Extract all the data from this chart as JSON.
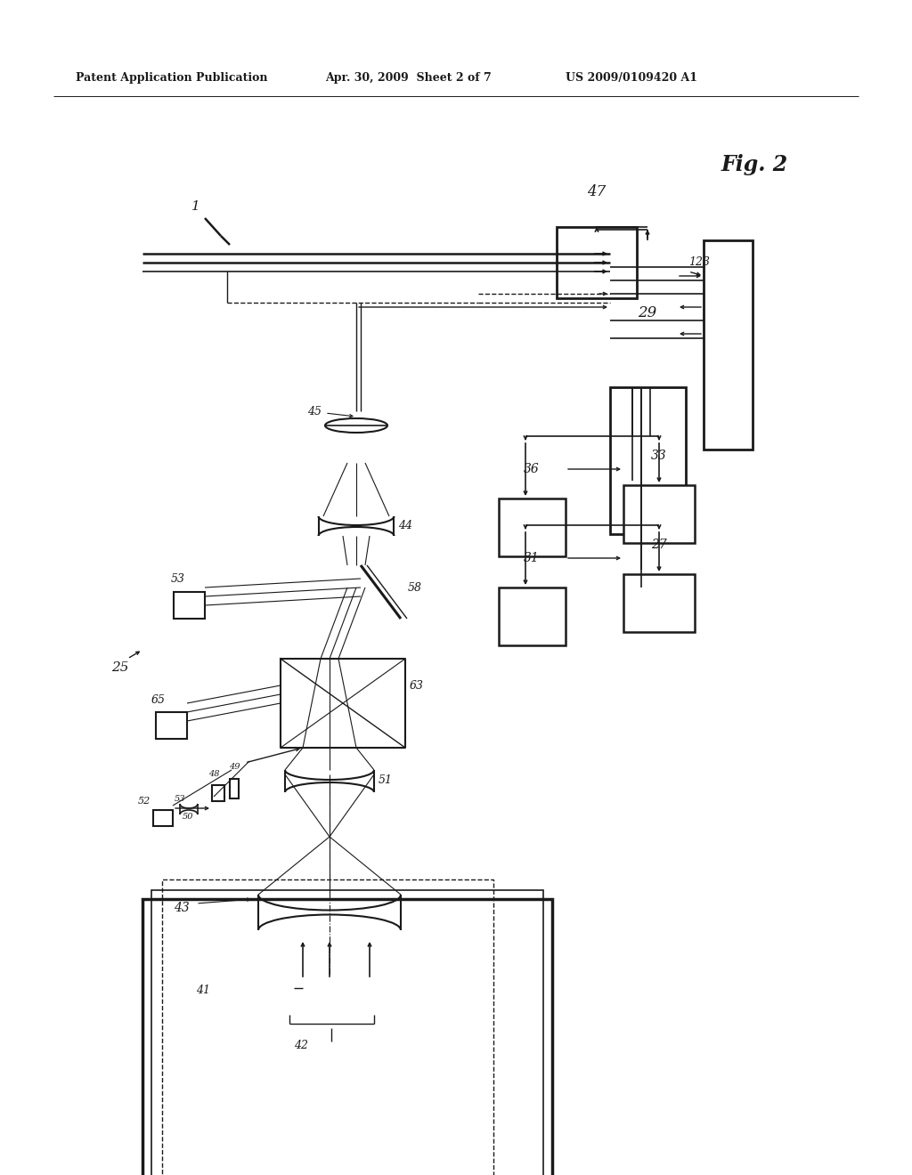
{
  "title_left": "Patent Application Publication",
  "title_mid": "Apr. 30, 2009  Sheet 2 of 7",
  "title_right": "US 2009/0109420 A1",
  "fig_label": "Fig. 2",
  "background": "#ffffff",
  "lc": "#1a1a1a"
}
